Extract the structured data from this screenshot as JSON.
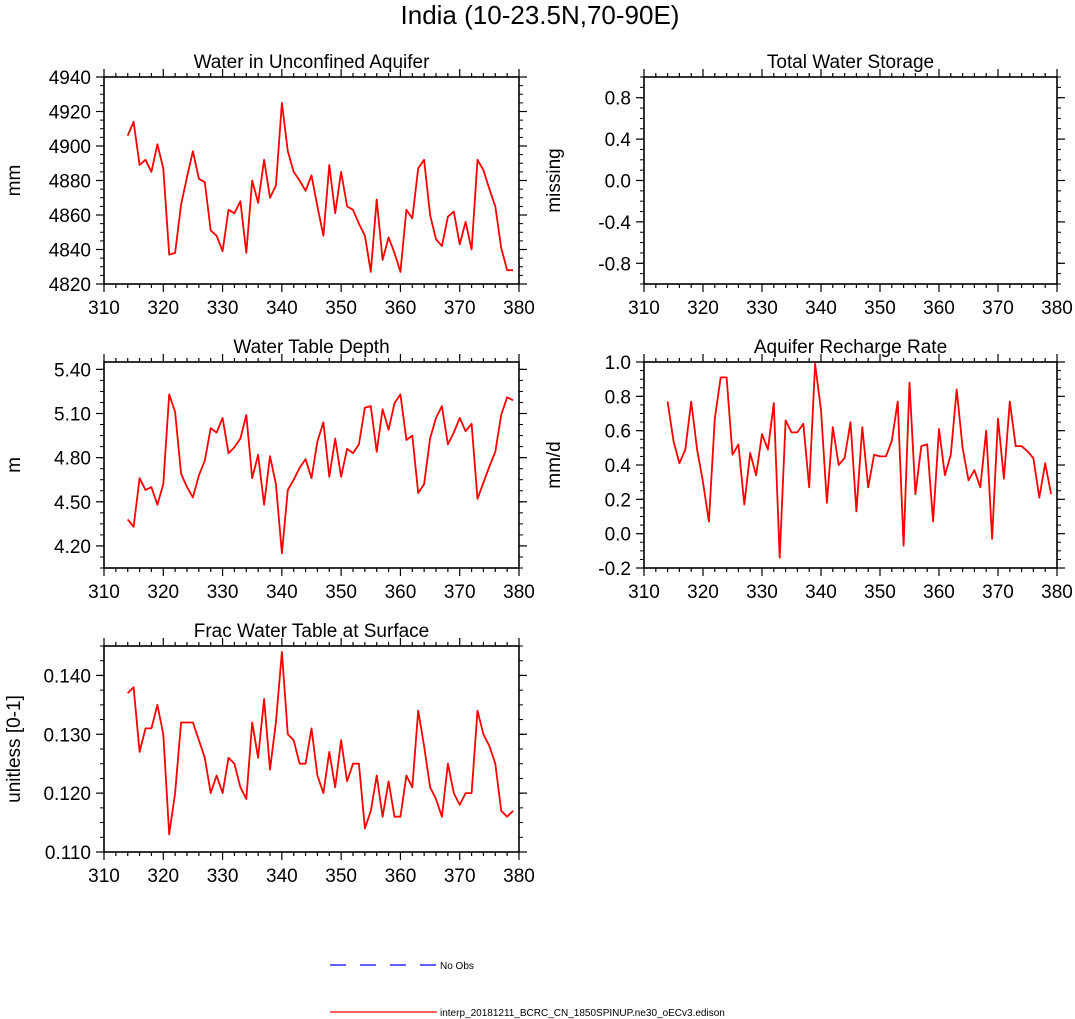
{
  "page": {
    "title": "India (10-23.5N,70-90E)"
  },
  "colors": {
    "model": "#ff0000",
    "obs": "#0000ff",
    "axis": "#000000"
  },
  "legend": {
    "obs_label": "No Obs",
    "model_label": "interp_20181211_BCRC_CN_1850SPINUP.ne30_oECv3.edison"
  },
  "chart_data": [
    {
      "id": "aquifer",
      "type": "line",
      "title": "Water in Unconfined Aquifer",
      "ylabel": "mm",
      "xlabel": "",
      "xlim": [
        310,
        380
      ],
      "ylim": [
        4820,
        4940
      ],
      "xticks": [
        310,
        320,
        330,
        340,
        350,
        360,
        370,
        380
      ],
      "xtick_labels": [
        "310",
        "320",
        "330",
        "340",
        "350",
        "360",
        "370",
        "380"
      ],
      "yticks": [
        4820,
        4840,
        4860,
        4880,
        4900,
        4920,
        4940
      ],
      "ytick_labels": [
        "4820",
        "4840",
        "4860",
        "4880",
        "4900",
        "4920",
        "4940"
      ],
      "series": [
        {
          "name": "interp_20181211_BCRC_CN_1850SPINUP.ne30_oECv3.edison",
          "x": [
            314,
            315,
            316,
            317,
            318,
            319,
            320,
            321,
            322,
            323,
            324,
            325,
            326,
            327,
            328,
            329,
            330,
            331,
            332,
            333,
            334,
            335,
            336,
            337,
            338,
            339,
            340,
            341,
            342,
            343,
            344,
            345,
            346,
            347,
            348,
            349,
            350,
            351,
            352,
            353,
            354,
            355,
            356,
            357,
            358,
            359,
            360,
            361,
            362,
            363,
            364,
            365,
            366,
            367,
            368,
            369,
            370,
            371,
            372,
            373,
            374,
            375,
            376,
            377,
            378,
            379
          ],
          "values": [
            4906,
            4914,
            4889,
            4892,
            4885,
            4901,
            4887,
            4837,
            4838,
            4866,
            4882,
            4897,
            4881,
            4879,
            4851,
            4848,
            4839,
            4863,
            4861,
            4868,
            4838,
            4880,
            4867,
            4892,
            4870,
            4877,
            4925,
            4897,
            4885,
            4880,
            4874,
            4883,
            4865,
            4848,
            4889,
            4861,
            4885,
            4865,
            4863,
            4855,
            4848,
            4827,
            4869,
            4834,
            4847,
            4838,
            4827,
            4863,
            4858,
            4887,
            4892,
            4860,
            4846,
            4842,
            4859,
            4862,
            4843,
            4856,
            4840,
            4892,
            4886,
            4875,
            4865,
            4841,
            4828,
            4828
          ]
        }
      ]
    },
    {
      "id": "tws",
      "type": "line",
      "title": "Total Water Storage",
      "ylabel": "missing",
      "xlabel": "",
      "xlim": [
        310,
        380
      ],
      "ylim": [
        -1.0,
        1.0
      ],
      "xticks": [
        310,
        320,
        330,
        340,
        350,
        360,
        370,
        380
      ],
      "xtick_labels": [
        "310",
        "320",
        "330",
        "340",
        "350",
        "360",
        "370",
        "380"
      ],
      "yticks": [
        -0.8,
        -0.4,
        0.0,
        0.4,
        0.8
      ],
      "ytick_labels": [
        "-0.8",
        "-0.4",
        "0.0",
        "0.4",
        "0.8"
      ],
      "series": []
    },
    {
      "id": "wtd",
      "type": "line",
      "title": "Water Table Depth",
      "ylabel": "m",
      "xlabel": "",
      "xlim": [
        310,
        380
      ],
      "ylim": [
        4.05,
        5.45
      ],
      "xticks": [
        310,
        320,
        330,
        340,
        350,
        360,
        370,
        380
      ],
      "xtick_labels": [
        "310",
        "320",
        "330",
        "340",
        "350",
        "360",
        "370",
        "380"
      ],
      "yticks": [
        4.2,
        4.5,
        4.8,
        5.1,
        5.4
      ],
      "ytick_labels": [
        "4.20",
        "4.50",
        "4.80",
        "5.10",
        "5.40"
      ],
      "series": [
        {
          "name": "interp_20181211_BCRC_CN_1850SPINUP.ne30_oECv3.edison",
          "x": [
            314,
            315,
            316,
            317,
            318,
            319,
            320,
            321,
            322,
            323,
            324,
            325,
            326,
            327,
            328,
            329,
            330,
            331,
            332,
            333,
            334,
            335,
            336,
            337,
            338,
            339,
            340,
            341,
            342,
            343,
            344,
            345,
            346,
            347,
            348,
            349,
            350,
            351,
            352,
            353,
            354,
            355,
            356,
            357,
            358,
            359,
            360,
            361,
            362,
            363,
            364,
            365,
            366,
            367,
            368,
            369,
            370,
            371,
            372,
            373,
            374,
            375,
            376,
            377,
            378,
            379
          ],
          "values": [
            4.38,
            4.33,
            4.66,
            4.58,
            4.6,
            4.48,
            4.62,
            5.23,
            5.11,
            4.69,
            4.6,
            4.53,
            4.68,
            4.78,
            5.0,
            4.97,
            5.07,
            4.83,
            4.87,
            4.93,
            5.09,
            4.66,
            4.82,
            4.48,
            4.81,
            4.62,
            4.15,
            4.58,
            4.65,
            4.73,
            4.79,
            4.66,
            4.91,
            5.04,
            4.67,
            4.93,
            4.67,
            4.86,
            4.83,
            4.89,
            5.14,
            5.15,
            4.84,
            5.13,
            4.99,
            5.17,
            5.23,
            4.92,
            4.95,
            4.56,
            4.62,
            4.93,
            5.07,
            5.15,
            4.89,
            4.97,
            5.07,
            4.98,
            5.03,
            4.52,
            4.63,
            4.74,
            4.84,
            5.09,
            5.21,
            5.19
          ]
        }
      ]
    },
    {
      "id": "recharge",
      "type": "line",
      "title": "Aquifer Recharge Rate",
      "ylabel": "mm/d",
      "xlabel": "",
      "xlim": [
        310,
        380
      ],
      "ylim": [
        -0.2,
        1.0
      ],
      "xticks": [
        310,
        320,
        330,
        340,
        350,
        360,
        370,
        380
      ],
      "xtick_labels": [
        "310",
        "320",
        "330",
        "340",
        "350",
        "360",
        "370",
        "380"
      ],
      "yticks": [
        -0.2,
        0.0,
        0.2,
        0.4,
        0.6,
        0.8,
        1.0
      ],
      "ytick_labels": [
        "-0.2",
        "0.0",
        "0.2",
        "0.4",
        "0.6",
        "0.8",
        "1.0"
      ],
      "series": [
        {
          "name": "interp_20181211_BCRC_CN_1850SPINUP.ne30_oECv3.edison",
          "x": [
            314,
            315,
            316,
            317,
            318,
            319,
            320,
            321,
            322,
            323,
            324,
            325,
            326,
            327,
            328,
            329,
            330,
            331,
            332,
            333,
            334,
            335,
            336,
            337,
            338,
            339,
            340,
            341,
            342,
            343,
            344,
            345,
            346,
            347,
            348,
            349,
            350,
            351,
            352,
            353,
            354,
            355,
            356,
            357,
            358,
            359,
            360,
            361,
            362,
            363,
            364,
            365,
            366,
            367,
            368,
            369,
            370,
            371,
            372,
            373,
            374,
            375,
            376,
            377,
            378,
            379
          ],
          "values": [
            0.77,
            0.54,
            0.41,
            0.49,
            0.77,
            0.49,
            0.3,
            0.07,
            0.67,
            0.91,
            0.91,
            0.46,
            0.52,
            0.17,
            0.47,
            0.34,
            0.58,
            0.49,
            0.76,
            -0.14,
            0.66,
            0.59,
            0.59,
            0.64,
            0.27,
            0.99,
            0.72,
            0.18,
            0.62,
            0.4,
            0.44,
            0.65,
            0.13,
            0.62,
            0.27,
            0.46,
            0.45,
            0.45,
            0.54,
            0.77,
            -0.07,
            0.88,
            0.23,
            0.51,
            0.52,
            0.07,
            0.61,
            0.34,
            0.46,
            0.84,
            0.5,
            0.31,
            0.37,
            0.27,
            0.6,
            -0.03,
            0.67,
            0.32,
            0.77,
            0.51,
            0.51,
            0.48,
            0.44,
            0.21,
            0.41,
            0.23
          ]
        }
      ]
    },
    {
      "id": "fracwt",
      "type": "line",
      "title": "Frac Water Table at Surface",
      "ylabel": "unitless [0-1]",
      "xlabel": "",
      "xlim": [
        310,
        380
      ],
      "ylim": [
        0.11,
        0.145
      ],
      "xticks": [
        310,
        320,
        330,
        340,
        350,
        360,
        370,
        380
      ],
      "xtick_labels": [
        "310",
        "320",
        "330",
        "340",
        "350",
        "360",
        "370",
        "380"
      ],
      "yticks": [
        0.11,
        0.12,
        0.13,
        0.14
      ],
      "ytick_labels": [
        "0.110",
        "0.120",
        "0.130",
        "0.140"
      ],
      "series": [
        {
          "name": "interp_20181211_BCRC_CN_1850SPINUP.ne30_oECv3.edison",
          "x": [
            314,
            315,
            316,
            317,
            318,
            319,
            320,
            321,
            322,
            323,
            324,
            325,
            326,
            327,
            328,
            329,
            330,
            331,
            332,
            333,
            334,
            335,
            336,
            337,
            338,
            339,
            340,
            341,
            342,
            343,
            344,
            345,
            346,
            347,
            348,
            349,
            350,
            351,
            352,
            353,
            354,
            355,
            356,
            357,
            358,
            359,
            360,
            361,
            362,
            363,
            364,
            365,
            366,
            367,
            368,
            369,
            370,
            371,
            372,
            373,
            374,
            375,
            376,
            377,
            378,
            379
          ],
          "values": [
            0.137,
            0.138,
            0.127,
            0.131,
            0.131,
            0.135,
            0.13,
            0.113,
            0.12,
            0.132,
            0.132,
            0.132,
            0.129,
            0.126,
            0.12,
            0.123,
            0.12,
            0.126,
            0.125,
            0.121,
            0.119,
            0.132,
            0.126,
            0.136,
            0.124,
            0.132,
            0.144,
            0.13,
            0.129,
            0.125,
            0.125,
            0.131,
            0.123,
            0.12,
            0.127,
            0.121,
            0.129,
            0.122,
            0.125,
            0.125,
            0.114,
            0.117,
            0.123,
            0.116,
            0.122,
            0.116,
            0.116,
            0.123,
            0.121,
            0.134,
            0.128,
            0.121,
            0.119,
            0.116,
            0.125,
            0.12,
            0.118,
            0.12,
            0.12,
            0.134,
            0.13,
            0.128,
            0.125,
            0.117,
            0.116,
            0.117
          ]
        }
      ]
    }
  ]
}
